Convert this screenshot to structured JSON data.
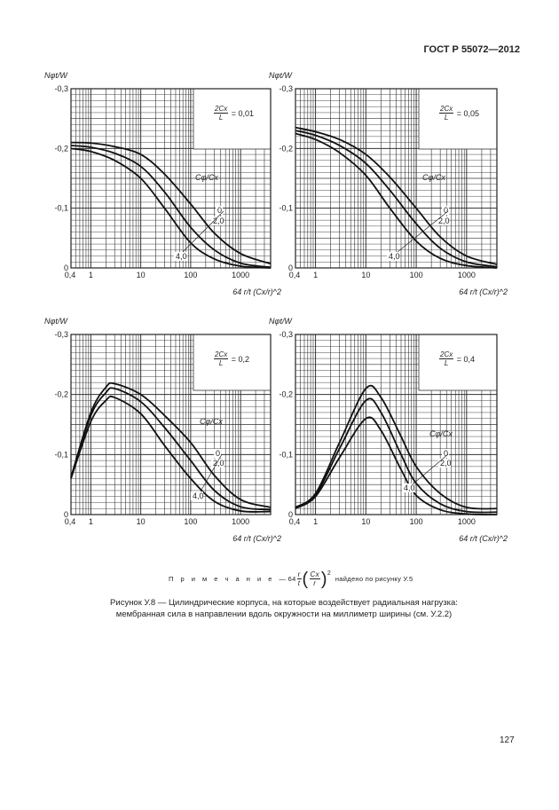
{
  "header": {
    "standard": "ГОСТ Р 55072—2012"
  },
  "page_number": "127",
  "note": {
    "prefix": "П р и м е ч а н и е",
    "dash": "—",
    "formula": {
      "coef": "64",
      "num1": "r",
      "den1": "t",
      "num2": "Cx",
      "den2": "r",
      "exp": "2"
    },
    "suffix": "найдено по рисунку У.5"
  },
  "caption": {
    "line1": "Рисунок У.8 — Цилиндрические корпуса, на которые воздействует радиальная нагрузка:",
    "line2": "мембранная сила в направлении вдоль окружности на миллиметр ширины (см. У.2.2)"
  },
  "chart_data": [
    {
      "type": "line",
      "ylabel": "Nφt/W",
      "xlabel": "64 r/t (Cx/r)^2",
      "xscale": "log",
      "xlim": [
        0.4,
        4000
      ],
      "ylim": [
        0,
        -0.3
      ],
      "xticks": [
        "0,4",
        "1",
        "10",
        "100",
        "1000"
      ],
      "yticks": [
        "-0,3",
        "-0,2",
        "-0,1",
        "0"
      ],
      "box_label": {
        "num": "2Cx",
        "den": "L",
        "value": "= 0,01"
      },
      "legend_title": "Cφ/Cx",
      "grid": true,
      "x": [
        0.4,
        1,
        3,
        10,
        30,
        100,
        300,
        1000,
        4000
      ],
      "series": [
        {
          "name": "0",
          "values": [
            -0.21,
            -0.209,
            -0.203,
            -0.19,
            -0.157,
            -0.107,
            -0.058,
            -0.024,
            -0.007
          ]
        },
        {
          "name": "2,0",
          "values": [
            -0.205,
            -0.202,
            -0.192,
            -0.17,
            -0.127,
            -0.068,
            -0.03,
            -0.008,
            -0.001
          ]
        },
        {
          "name": "4,0",
          "values": [
            -0.2,
            -0.195,
            -0.18,
            -0.15,
            -0.1,
            -0.042,
            -0.015,
            -0.003,
            0
          ]
        }
      ]
    },
    {
      "type": "line",
      "ylabel": "Nφt/W",
      "xlabel": "64 r/t (Cx/r)^2",
      "xscale": "log",
      "xlim": [
        0.4,
        4000
      ],
      "ylim": [
        0,
        -0.3
      ],
      "xticks": [
        "0,4",
        "1",
        "10",
        "100",
        "1000"
      ],
      "yticks": [
        "-0,3",
        "-0,2",
        "-0,1",
        "0"
      ],
      "box_label": {
        "num": "2Cx",
        "den": "L",
        "value": "= 0,05"
      },
      "legend_title": "Cφ/Cx",
      "grid": true,
      "x": [
        0.4,
        1,
        3,
        10,
        30,
        100,
        300,
        1000,
        4000
      ],
      "series": [
        {
          "name": "0",
          "values": [
            -0.235,
            -0.228,
            -0.215,
            -0.19,
            -0.152,
            -0.1,
            -0.052,
            -0.02,
            -0.006
          ]
        },
        {
          "name": "2,0",
          "values": [
            -0.23,
            -0.222,
            -0.205,
            -0.175,
            -0.13,
            -0.074,
            -0.033,
            -0.01,
            -0.002
          ]
        },
        {
          "name": "4,0",
          "values": [
            -0.225,
            -0.215,
            -0.193,
            -0.155,
            -0.1,
            -0.045,
            -0.016,
            -0.004,
            0
          ]
        }
      ]
    },
    {
      "type": "line",
      "ylabel": "Nφt/W",
      "xlabel": "64 r/t (Cx/r)^2",
      "xscale": "log",
      "xlim": [
        0.4,
        4000
      ],
      "ylim": [
        0,
        -0.3
      ],
      "xticks": [
        "0,4",
        "1",
        "10",
        "100",
        "1000"
      ],
      "yticks": [
        "-0,3",
        "-0,2",
        "-0,1",
        "0"
      ],
      "box_label": {
        "num": "2Cx",
        "den": "L",
        "value": "= 0,2"
      },
      "legend_title": "Cφ/Cx",
      "grid": true,
      "x": [
        0.4,
        1,
        2,
        3,
        10,
        30,
        100,
        300,
        1000,
        4000
      ],
      "series": [
        {
          "name": "0",
          "values": [
            -0.062,
            -0.17,
            -0.212,
            -0.218,
            -0.2,
            -0.165,
            -0.12,
            -0.065,
            -0.025,
            -0.012
          ]
        },
        {
          "name": "2,0",
          "values": [
            -0.062,
            -0.165,
            -0.203,
            -0.21,
            -0.188,
            -0.145,
            -0.09,
            -0.04,
            -0.013,
            -0.008
          ]
        },
        {
          "name": "4,0",
          "values": [
            -0.06,
            -0.155,
            -0.19,
            -0.195,
            -0.168,
            -0.115,
            -0.06,
            -0.022,
            -0.006,
            -0.005
          ]
        }
      ]
    },
    {
      "type": "line",
      "ylabel": "Nφt/W",
      "xlabel": "64 r/t (Cx/r)^2",
      "xscale": "log",
      "xlim": [
        0.4,
        4000
      ],
      "ylim": [
        0,
        -0.3
      ],
      "xticks": [
        "0,4",
        "1",
        "10",
        "100",
        "1000"
      ],
      "yticks": [
        "-0,3",
        "-0,2",
        "-0,1",
        "0"
      ],
      "box_label": {
        "num": "2Cx",
        "den": "L",
        "value": "= 0,4"
      },
      "legend_title": "Cφ/Cx",
      "grid": true,
      "x": [
        0.4,
        1,
        3,
        10,
        20,
        50,
        100,
        300,
        1000,
        4000
      ],
      "series": [
        {
          "name": "0",
          "values": [
            -0.012,
            -0.035,
            -0.12,
            -0.21,
            -0.195,
            -0.13,
            -0.08,
            -0.035,
            -0.012,
            -0.01
          ]
        },
        {
          "name": "2,0",
          "values": [
            -0.012,
            -0.032,
            -0.11,
            -0.19,
            -0.17,
            -0.1,
            -0.052,
            -0.018,
            -0.005,
            -0.004
          ]
        },
        {
          "name": "4,0",
          "values": [
            -0.01,
            -0.03,
            -0.095,
            -0.16,
            -0.14,
            -0.075,
            -0.032,
            -0.008,
            -0.001,
            0
          ]
        }
      ]
    }
  ]
}
